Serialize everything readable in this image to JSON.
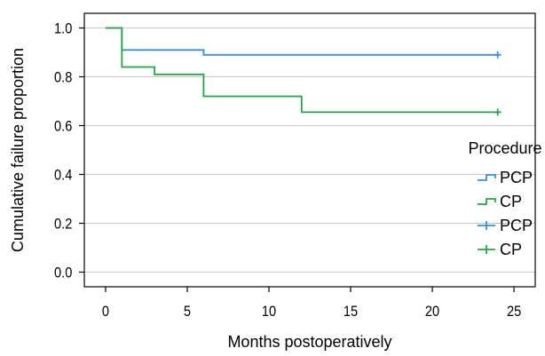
{
  "chart_data": {
    "type": "line",
    "title": "",
    "xlabel": "Months postoperatively",
    "ylabel": "Cumulative failure proportion",
    "xlim": [
      -1.3,
      26.3
    ],
    "ylim": [
      -0.06,
      1.06
    ],
    "x_ticks": [
      0,
      5,
      10,
      15,
      20,
      25
    ],
    "y_ticks": [
      0.0,
      0.2,
      0.4,
      0.6,
      0.8,
      1.0
    ],
    "x_tick_labels": [
      "0",
      "5",
      "10",
      "15",
      "20",
      "25"
    ],
    "y_tick_labels": [
      "0.0",
      "0.2",
      "0.4",
      "0.6",
      "0.8",
      "1.0"
    ],
    "grid": "horizontal",
    "legend": {
      "title": "Procedure",
      "placement": "right",
      "entries": [
        {
          "label": "PCP",
          "symbol": "step",
          "color": "#3a8fd8"
        },
        {
          "label": "CP",
          "symbol": "step",
          "color": "#2aa24a"
        },
        {
          "label": "PCP",
          "symbol": "cross",
          "color": "#3a8fd8"
        },
        {
          "label": "CP",
          "symbol": "cross",
          "color": "#2aa24a"
        }
      ]
    },
    "series": [
      {
        "name": "PCP",
        "color": "#3a8fd8",
        "step": true,
        "points": [
          [
            0,
            1.0
          ],
          [
            1,
            1.0
          ],
          [
            1,
            0.91
          ],
          [
            6,
            0.91
          ],
          [
            6,
            0.89
          ],
          [
            24,
            0.89
          ]
        ],
        "censored": [
          [
            24,
            0.89
          ]
        ]
      },
      {
        "name": "CP",
        "color": "#2aa24a",
        "step": true,
        "points": [
          [
            0,
            1.0
          ],
          [
            1,
            1.0
          ],
          [
            1,
            0.84
          ],
          [
            3,
            0.84
          ],
          [
            3,
            0.81
          ],
          [
            6,
            0.81
          ],
          [
            6,
            0.72
          ],
          [
            12,
            0.72
          ],
          [
            12,
            0.655
          ],
          [
            24,
            0.655
          ]
        ],
        "censored": [
          [
            24,
            0.655
          ]
        ]
      }
    ]
  }
}
